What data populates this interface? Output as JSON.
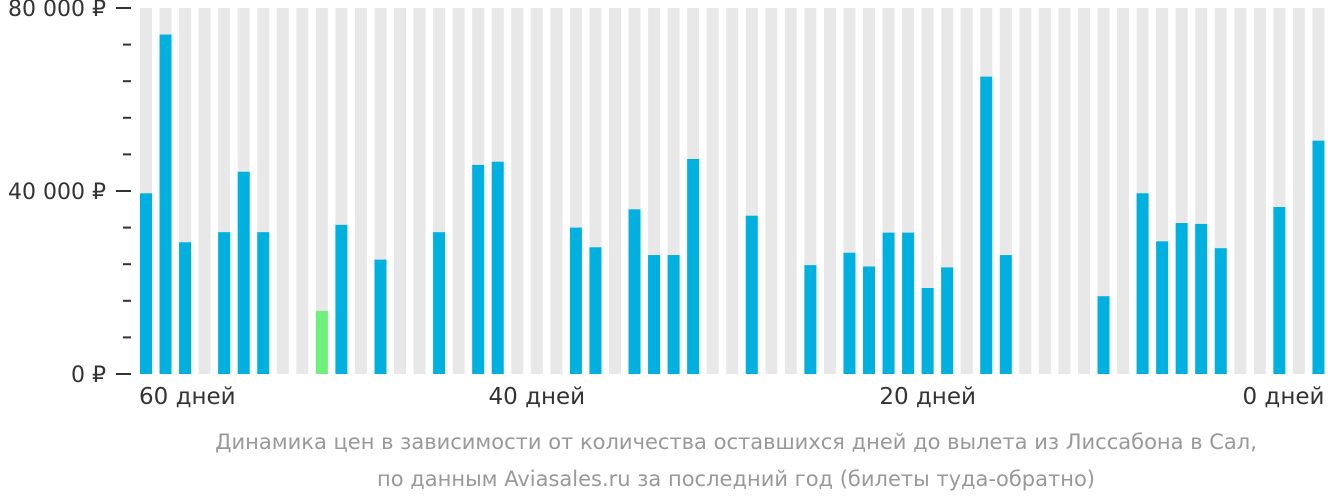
{
  "chart_data": {
    "type": "bar",
    "x_axis": {
      "direction": "descending",
      "range": [
        60,
        0
      ],
      "tick_values": [
        60,
        40,
        20,
        0
      ],
      "tick_labels": [
        "60 дней",
        "40 дней",
        "20 дней",
        "0 дней"
      ]
    },
    "y_axis": {
      "range": [
        0,
        80000
      ],
      "major_ticks": [
        0,
        40000,
        80000
      ],
      "major_tick_labels": [
        "0 ₽",
        "40 000 ₽",
        "80 000 ₽"
      ],
      "minor_tick_step": 8000
    },
    "days": [
      60,
      59,
      58,
      57,
      56,
      55,
      54,
      53,
      52,
      51,
      50,
      49,
      48,
      47,
      46,
      45,
      44,
      43,
      42,
      41,
      40,
      39,
      38,
      37,
      36,
      35,
      34,
      33,
      32,
      31,
      30,
      29,
      28,
      27,
      26,
      25,
      24,
      23,
      22,
      21,
      20,
      19,
      18,
      17,
      16,
      15,
      14,
      13,
      12,
      11,
      10,
      9,
      8,
      7,
      6,
      5,
      4,
      3,
      2,
      1,
      0
    ],
    "values": [
      39500,
      74200,
      28800,
      null,
      31000,
      44200,
      31000,
      null,
      null,
      13800,
      32600,
      null,
      25000,
      null,
      null,
      31000,
      null,
      45700,
      46400,
      null,
      null,
      null,
      32000,
      27700,
      null,
      36000,
      26000,
      26000,
      47000,
      null,
      null,
      34600,
      null,
      null,
      23800,
      null,
      26500,
      23500,
      30900,
      30900,
      18800,
      23300,
      null,
      65000,
      26000,
      null,
      null,
      null,
      null,
      17000,
      null,
      39500,
      29000,
      33000,
      32800,
      27500,
      null,
      null,
      36500,
      null,
      51000
    ],
    "highlight_day": 51,
    "colors": {
      "bar": "#00b0de",
      "bar_highlight": "#6ff07c",
      "column_background": "#e8e8e8",
      "axis": "#333333"
    },
    "grid": false,
    "legend": "none"
  },
  "caption": {
    "line1": "Динамика цен в зависимости от количества оставшихся дней до вылета из Лиссабона в Сал,",
    "line2": "по данным Aviasales.ru за последний год (билеты туда-обратно)"
  }
}
